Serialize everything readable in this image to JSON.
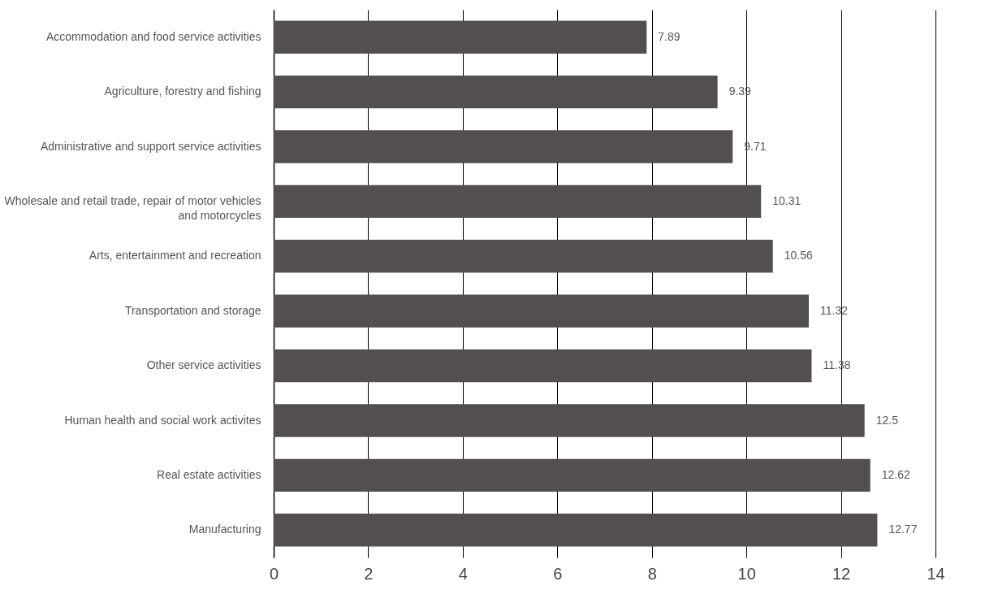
{
  "chart_data": {
    "type": "bar",
    "orientation": "horizontal",
    "categories": [
      "Accommodation and food service activities",
      "Agriculture, forestry and fishing",
      "Administrative and support service activities",
      "Wholesale and retail trade, repair of motor vehicles and motorcycles",
      "Arts, entertainment and recreation",
      "Transportation and storage",
      "Other service activities",
      "Human health and social work activites",
      "Real estate activities",
      "Manufacturing"
    ],
    "values": [
      7.89,
      9.39,
      9.71,
      10.31,
      10.56,
      11.32,
      11.38,
      12.5,
      12.62,
      12.77
    ],
    "color": "#524f4e",
    "xlim": [
      0,
      14
    ],
    "xticks": [
      0,
      2,
      4,
      6,
      8,
      10,
      12,
      14
    ],
    "grid": "x",
    "data_labels": true
  }
}
